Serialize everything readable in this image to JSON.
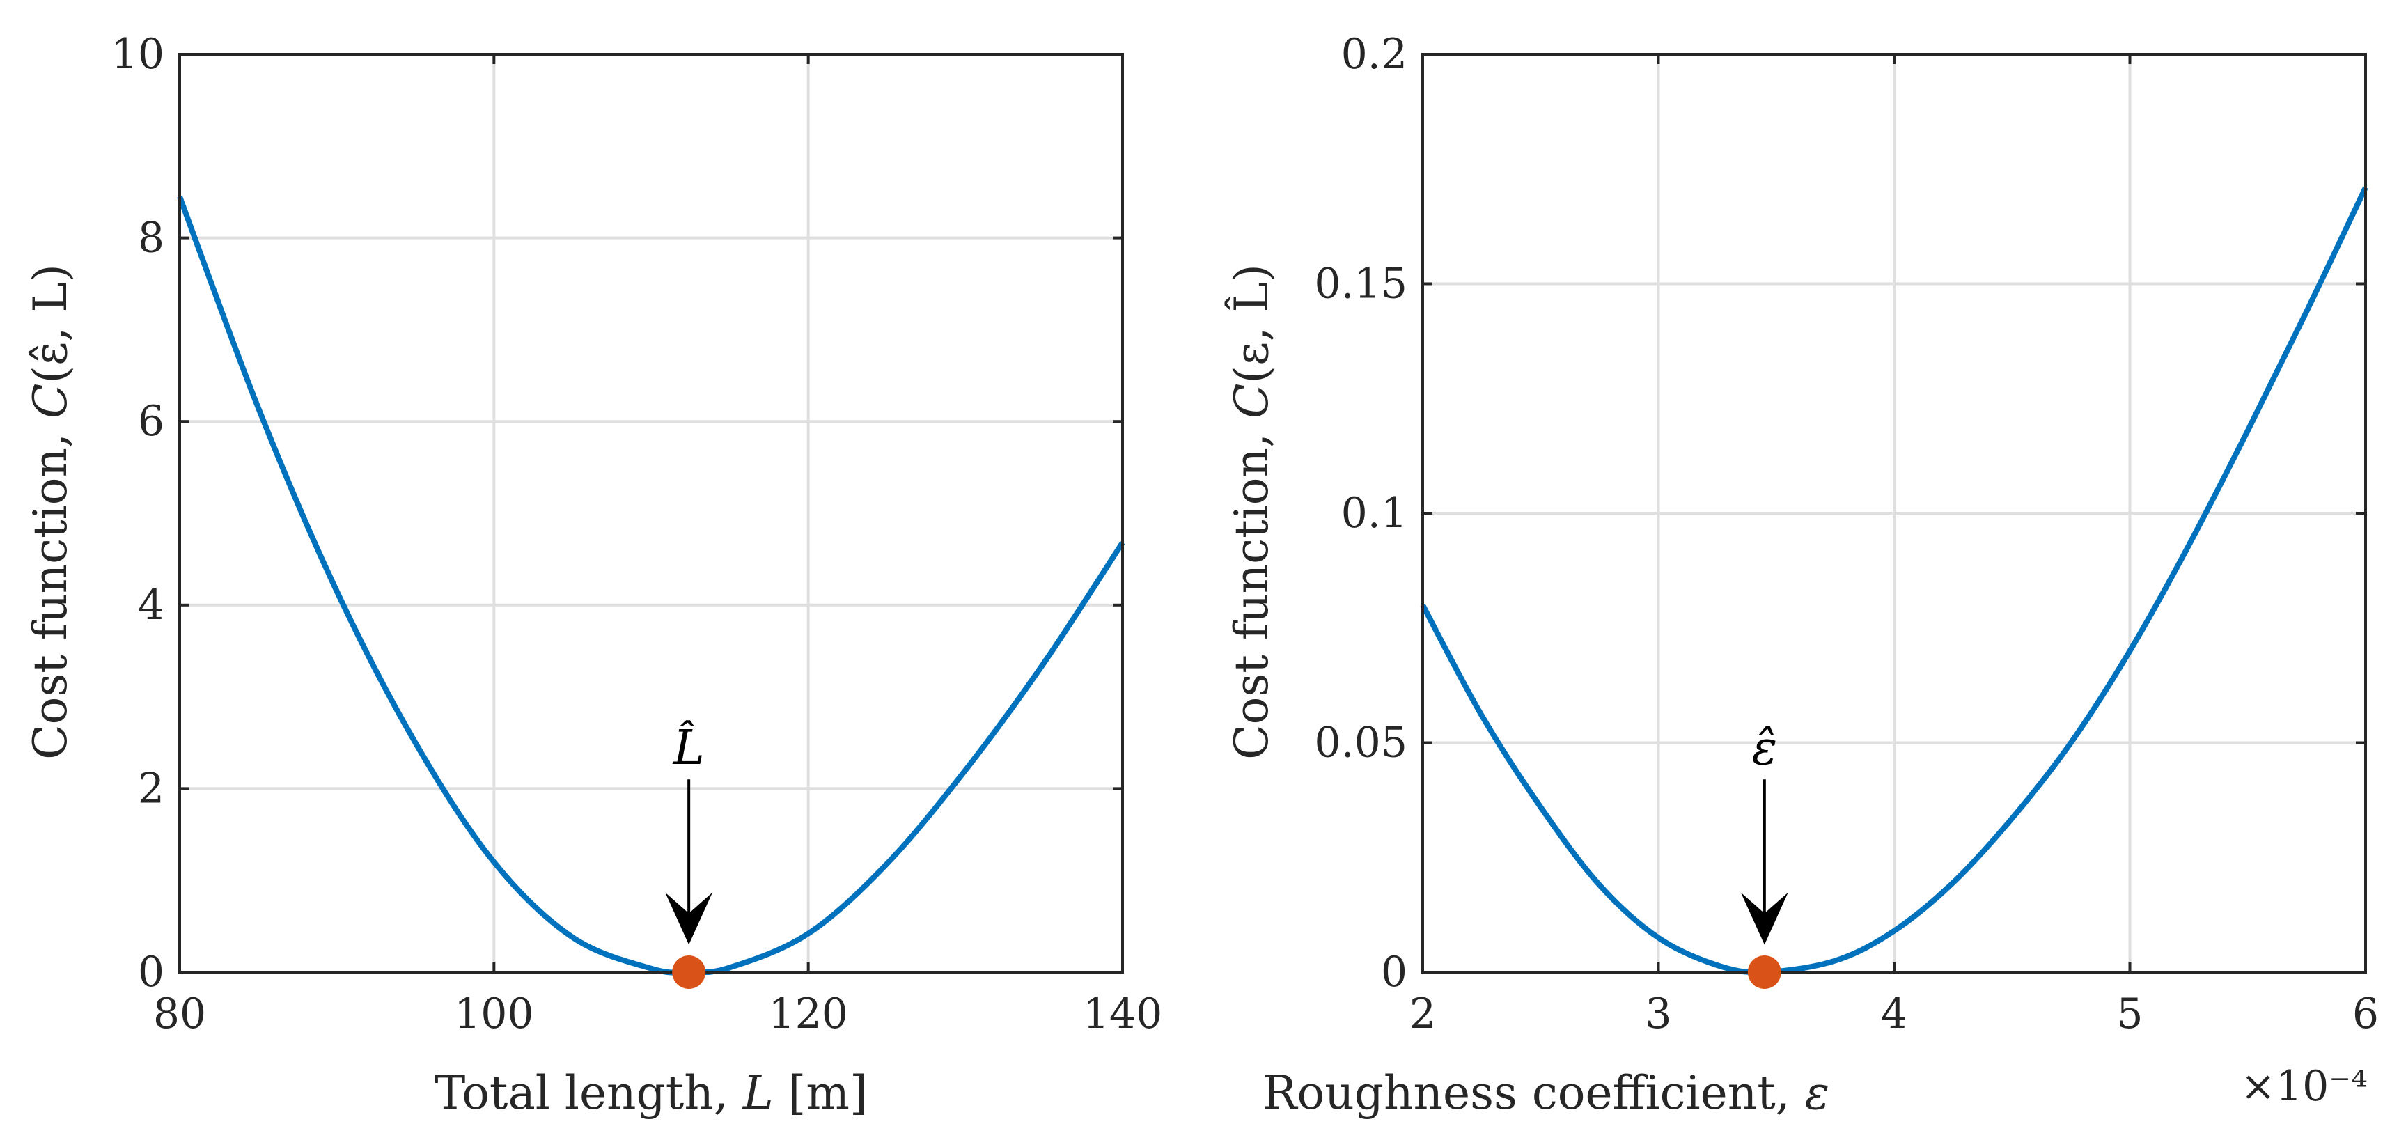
{
  "colors": {
    "curve": "#0072BD",
    "marker": "#D95319",
    "grid": "#DFDFDF",
    "axis": "#262626",
    "annotation": "#000000"
  },
  "chart_data": [
    {
      "type": "line",
      "xlabel": "Total length, L [m]",
      "xlabel_parts": {
        "prefix": "Total length, ",
        "var": "L",
        "suffix": " [m]"
      },
      "ylabel": "Cost function, C(ε̂, L)",
      "ylabel_parts": {
        "prefix": "Cost function, ",
        "func": "C",
        "args": "(ε̂, L)"
      },
      "xlim": [
        80,
        140
      ],
      "ylim": [
        0,
        10
      ],
      "xticks": [
        80,
        100,
        120,
        140
      ],
      "xtick_labels": [
        "80",
        "100",
        "120",
        "140"
      ],
      "yticks": [
        0,
        2,
        4,
        6,
        8,
        10
      ],
      "ytick_labels": [
        "0",
        "2",
        "4",
        "6",
        "8",
        "10"
      ],
      "grid": true,
      "series": [
        {
          "name": "cost",
          "x": [
            80,
            85,
            90,
            95,
            100,
            105,
            110,
            112.4,
            115,
            120,
            125,
            130,
            135,
            140
          ],
          "y": [
            8.45,
            6.15,
            4.15,
            2.5,
            1.2,
            0.38,
            0.04,
            0.0,
            0.05,
            0.42,
            1.18,
            2.2,
            3.37,
            4.68
          ]
        }
      ],
      "minimum": {
        "x": 112.4,
        "y": 0
      },
      "annotation": {
        "text": "L̂",
        "x": 112.4,
        "y_from": 2.1,
        "y_to": 0.3
      }
    },
    {
      "type": "line",
      "xlabel": "Roughness coefficient, ε",
      "xlabel_parts": {
        "prefix": "Roughness coefficient, ",
        "var": "ε"
      },
      "ylabel": "Cost function, C(ε, L̂)",
      "ylabel_parts": {
        "prefix": "Cost function, ",
        "func": "C",
        "args": "(ε, L̂)"
      },
      "x_exponent_label": "×10⁻⁴",
      "xlim": [
        2,
        6
      ],
      "ylim": [
        0,
        0.2
      ],
      "xticks": [
        2,
        3,
        4,
        5,
        6
      ],
      "xtick_labels": [
        "2",
        "3",
        "4",
        "5",
        "6"
      ],
      "yticks": [
        0,
        0.05,
        0.1,
        0.15,
        0.2
      ],
      "ytick_labels": [
        "0",
        "0.05",
        "0.1",
        "0.15",
        "0.2"
      ],
      "grid": true,
      "series": [
        {
          "name": "cost",
          "x": [
            2.0,
            2.25,
            2.5,
            2.75,
            3.0,
            3.25,
            3.45,
            3.75,
            4.0,
            4.25,
            4.5,
            4.75,
            5.0,
            5.25,
            5.5,
            5.75,
            6.0
          ],
          "y": [
            0.08,
            0.056,
            0.036,
            0.019,
            0.0075,
            0.0015,
            0.0,
            0.0025,
            0.009,
            0.0195,
            0.0335,
            0.05,
            0.07,
            0.093,
            0.118,
            0.144,
            0.171
          ]
        }
      ],
      "minimum": {
        "x": 3.45,
        "y": 0
      },
      "annotation": {
        "text": "ε̂",
        "x": 3.45,
        "y_from": 0.042,
        "y_to": 0.006
      }
    }
  ]
}
